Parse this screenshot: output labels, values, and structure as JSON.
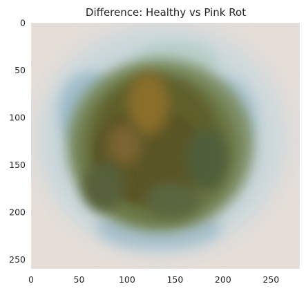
{
  "chart_data": {
    "type": "heatmap",
    "title": "Difference: Healthy vs Pink Rot",
    "xlabel": "",
    "ylabel": "",
    "xlim": [
      0,
      280
    ],
    "ylim": [
      260,
      0
    ],
    "grid": false,
    "x_ticks": [
      {
        "value": 0,
        "label": "0"
      },
      {
        "value": 50,
        "label": "50"
      },
      {
        "value": 100,
        "label": "100"
      },
      {
        "value": 150,
        "label": "150"
      },
      {
        "value": 200,
        "label": "200"
      },
      {
        "value": 250,
        "label": "250"
      }
    ],
    "y_ticks": [
      {
        "value": 0,
        "label": "0"
      },
      {
        "value": 50,
        "label": "50"
      },
      {
        "value": 100,
        "label": "100"
      },
      {
        "value": 150,
        "label": "150"
      },
      {
        "value": 200,
        "label": "200"
      },
      {
        "value": 250,
        "label": "250"
      }
    ],
    "image_content": {
      "description_colors": {
        "background": "#e4dcd6",
        "halo": "#c9d6d9",
        "outer_blue": "#98b8c8",
        "mid_green": "#6d7c4c",
        "core": "#5e5a28",
        "highlight": "#8a6e2a"
      }
    }
  }
}
